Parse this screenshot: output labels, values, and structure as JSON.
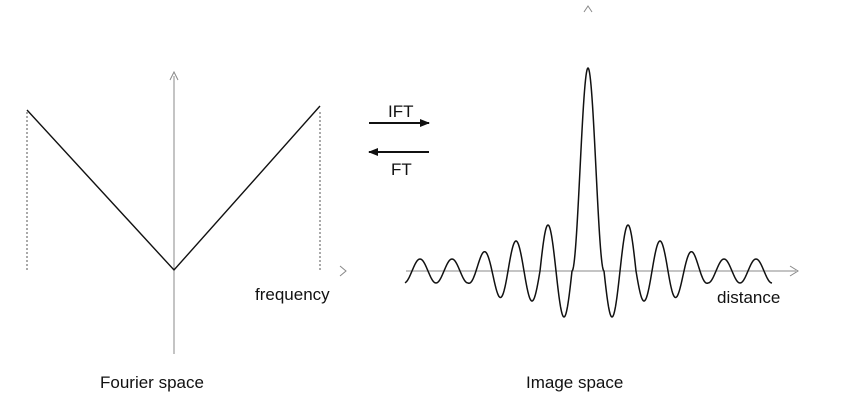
{
  "fourier": {
    "axis_label": "frequency",
    "caption": "Fourier space"
  },
  "image": {
    "axis_label": "distance",
    "caption": "Image space"
  },
  "transforms": {
    "inverse_label": "IFT",
    "forward_label": "FT"
  },
  "colors": {
    "line": "#111111",
    "axis": "#888888",
    "background": "#ffffff"
  }
}
